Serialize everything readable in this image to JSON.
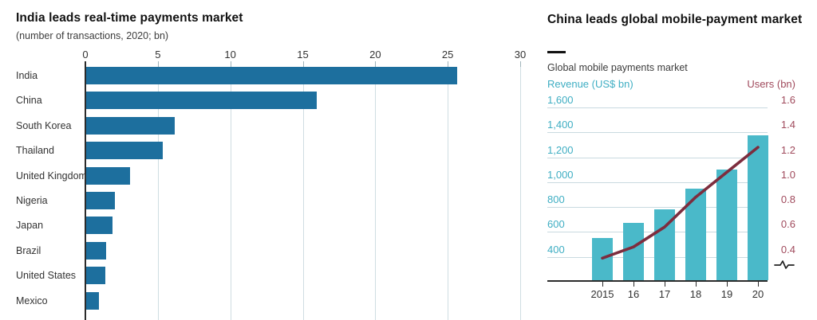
{
  "chart_data": [
    {
      "type": "bar",
      "orientation": "horizontal",
      "title": "India leads real-time payments market",
      "subtitle": "(number of transactions, 2020; bn)",
      "categories": [
        "India",
        "China",
        "South Korea",
        "Thailand",
        "United Kingdom",
        "Nigeria",
        "Japan",
        "Brazil",
        "United States",
        "Mexico"
      ],
      "values": [
        25.6,
        15.9,
        6.1,
        5.3,
        3.0,
        2.0,
        1.8,
        1.4,
        1.3,
        0.9
      ],
      "xlabel": "",
      "ylabel": "",
      "xlim": [
        0,
        30
      ],
      "x_ticks": [
        0,
        5,
        10,
        15,
        20,
        25,
        30
      ],
      "grid": true,
      "legend": false,
      "bar_color": "#1d6f9e"
    },
    {
      "type": "bar",
      "subtype": "bar+line dual axis",
      "title": "China leads global mobile-payment market",
      "subtitle": "Global mobile payments market",
      "categories": [
        "2015",
        "16",
        "17",
        "18",
        "19",
        "20"
      ],
      "series": [
        {
          "name": "Revenue (US$ bn)",
          "type": "bar",
          "axis": "left",
          "values": [
            550,
            670,
            780,
            950,
            1100,
            1375
          ],
          "color": "#4ab9c9"
        },
        {
          "name": "Users (bn)",
          "type": "line",
          "axis": "right",
          "values": [
            0.39,
            0.48,
            0.64,
            0.88,
            1.08,
            1.28
          ],
          "color": "#7d2d3e"
        }
      ],
      "left_axis": {
        "label": "Revenue (US$ bn)",
        "tick_labels": [
          "1,600",
          "1,400",
          "1,200",
          "1,000",
          "800",
          "600",
          "400"
        ],
        "tick_values": [
          1600,
          1400,
          1200,
          1000,
          800,
          600,
          400
        ],
        "color": "#3faec3"
      },
      "right_axis": {
        "label": "Users (bn)",
        "tick_labels": [
          "1.6",
          "1.4",
          "1.2",
          "1.0",
          "0.8",
          "0.6",
          "0.4"
        ],
        "tick_values": [
          1.6,
          1.4,
          1.2,
          1.0,
          0.8,
          0.6,
          0.4
        ],
        "color": "#a04a5c"
      },
      "axis_truncated": true,
      "grid": true,
      "legend": "axis-colored labels top"
    }
  ],
  "colors": {
    "left_bar": "#1d6f9e",
    "right_bar": "#4ab9c9",
    "line": "#7d2d3e",
    "revenue_text": "#3faec3",
    "users_text": "#a04a5c",
    "grid": "#c9dae0",
    "axis": "#2b2b2b",
    "title_text": "#121212",
    "body_text": "#333333"
  }
}
